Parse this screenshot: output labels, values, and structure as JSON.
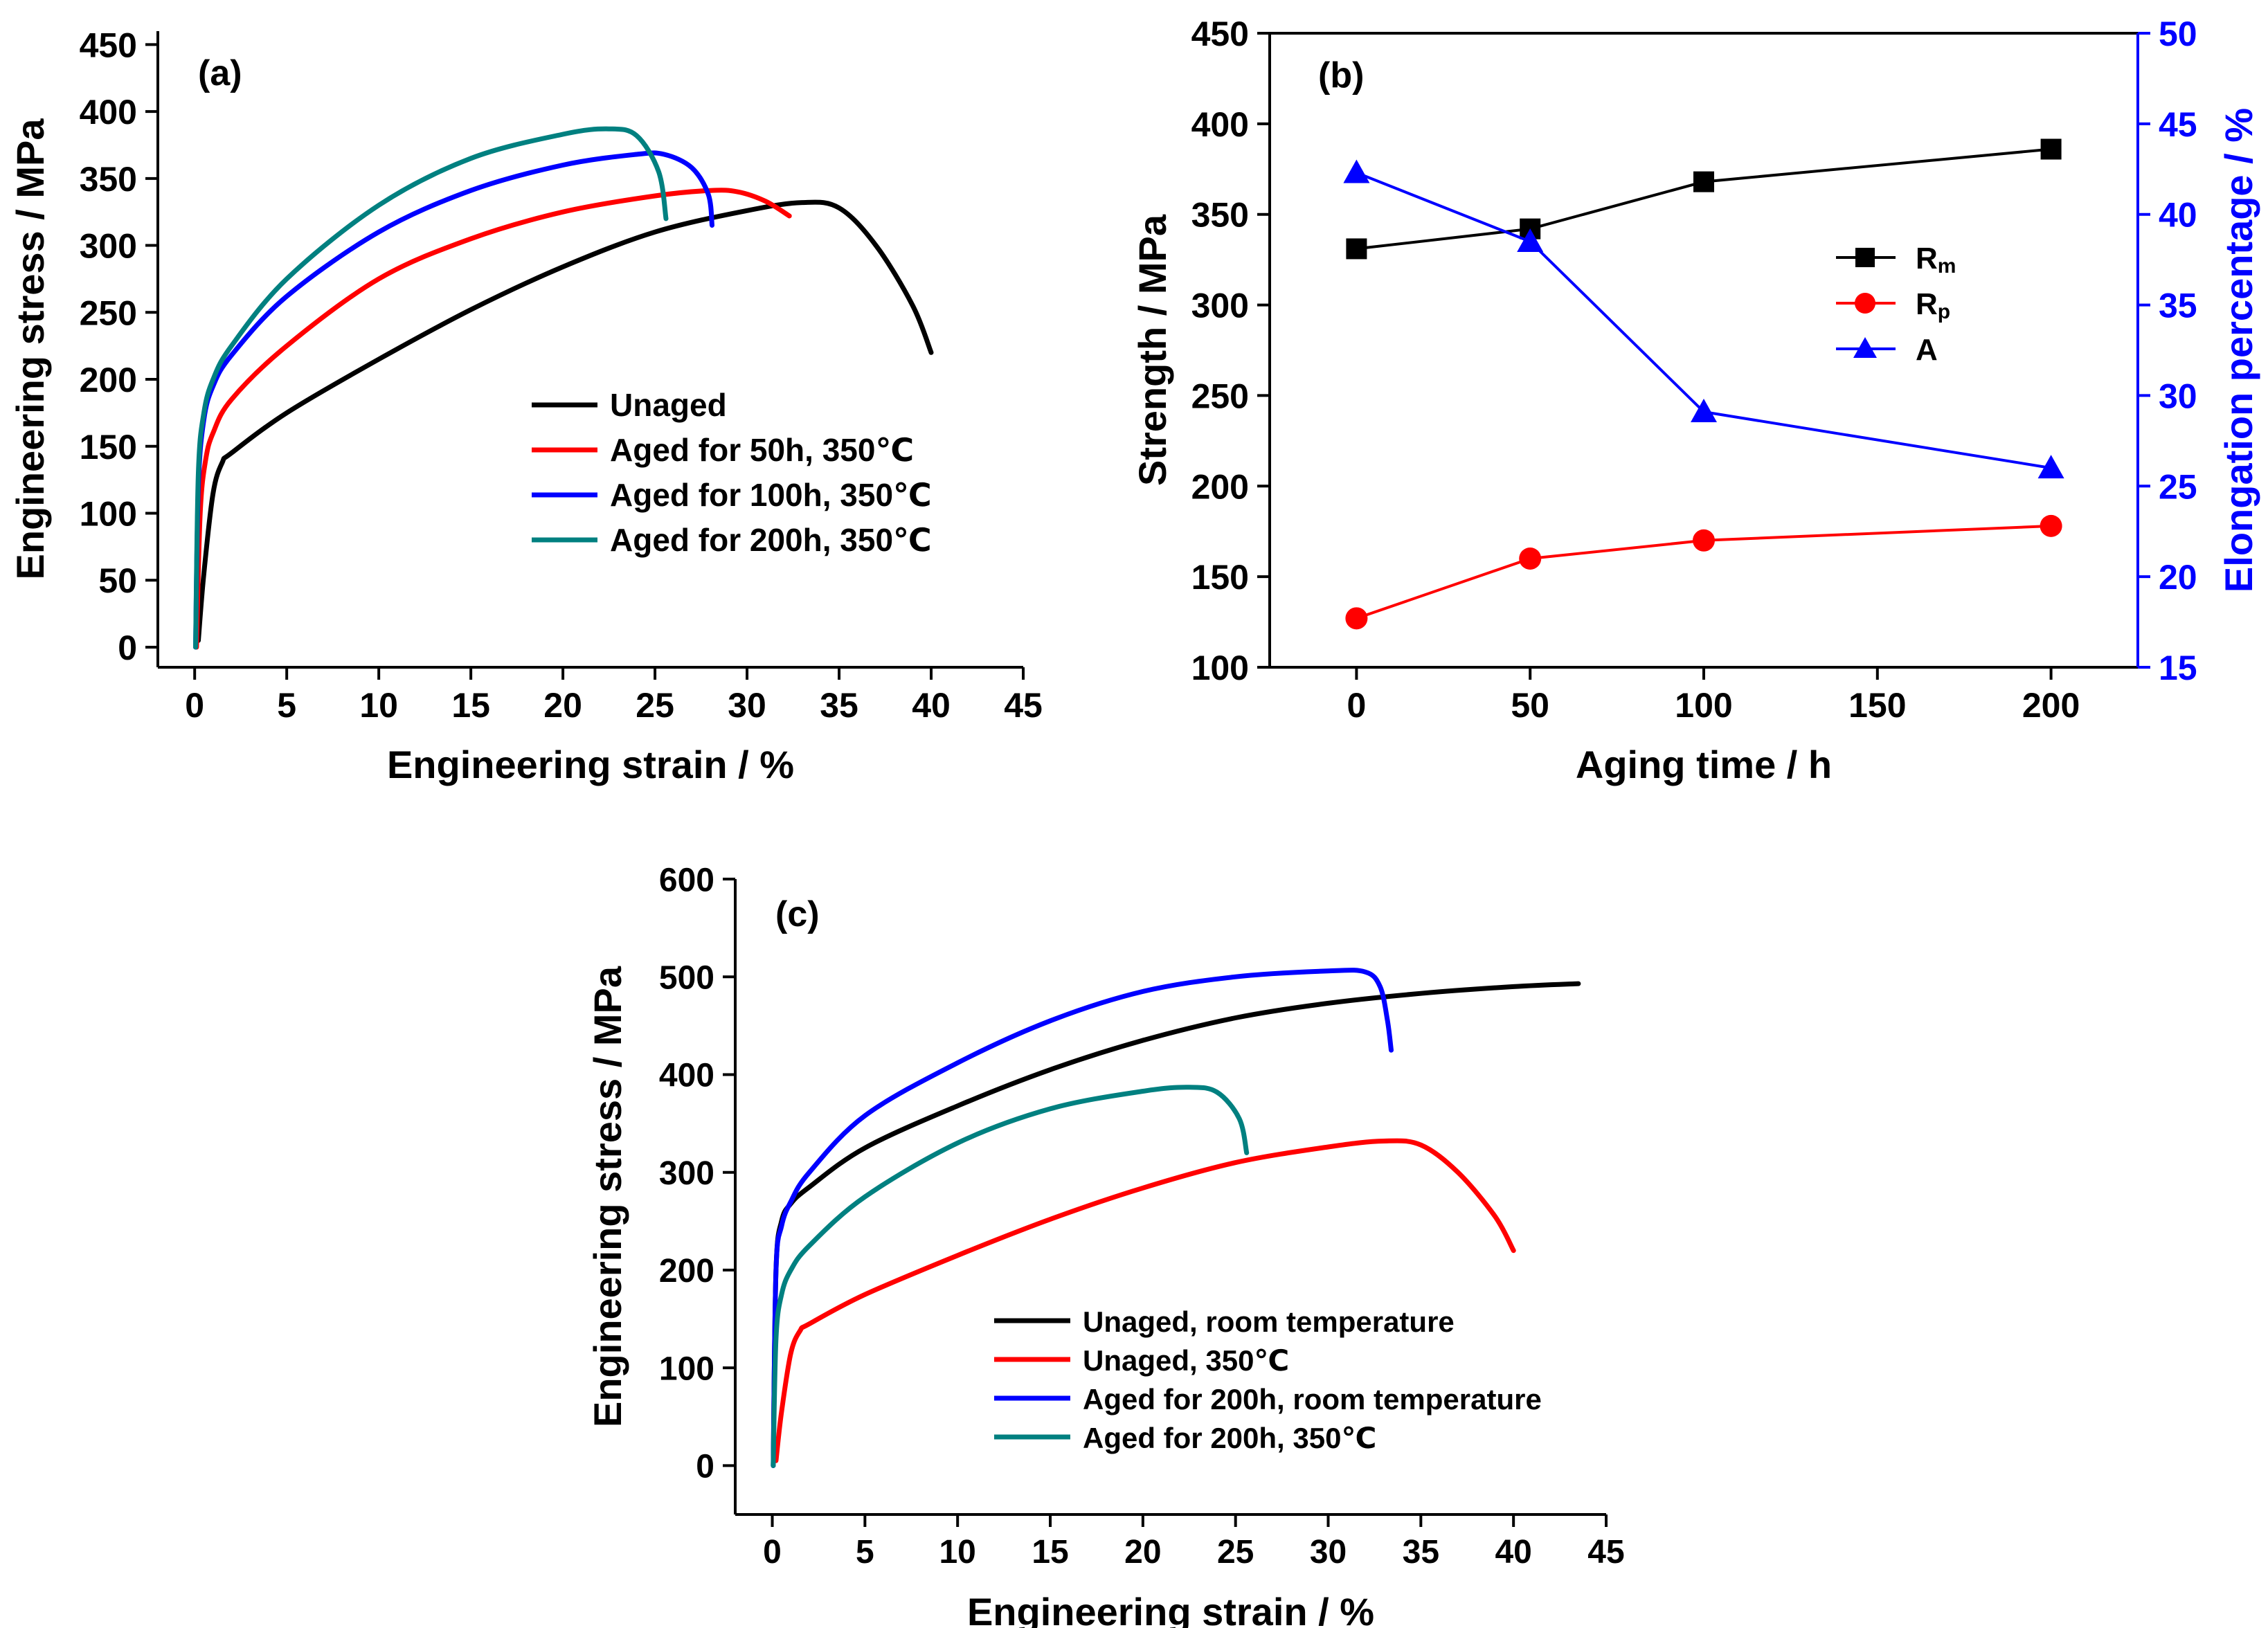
{
  "chart_data": [
    {
      "panel": "(a)",
      "type": "line",
      "xlabel": "Engineering strain / %",
      "ylabel": "Engineering stress / MPa",
      "xlim": [
        -2,
        45
      ],
      "ylim": [
        -15,
        460
      ],
      "xticks": [
        0,
        5,
        10,
        15,
        20,
        25,
        30,
        35,
        40,
        45
      ],
      "yticks": [
        0,
        50,
        100,
        150,
        200,
        250,
        300,
        350,
        400,
        450
      ],
      "legend_position": "center-right",
      "series": [
        {
          "name": "Unaged",
          "color": "#000000",
          "x": [
            0.2,
            0.5,
            1.0,
            1.5,
            2.0,
            5,
            10,
            15,
            20,
            25,
            30,
            33,
            35,
            37,
            39,
            40
          ],
          "y": [
            5,
            55,
            115,
            138,
            145,
            175,
            215,
            252,
            284,
            310,
            326,
            332,
            328,
            300,
            255,
            220
          ]
        },
        {
          "name": "Aged for 50h, 350℃",
          "color": "#ff0000",
          "x": [
            0.1,
            0.3,
            0.6,
            1.0,
            2.0,
            5,
            10,
            15,
            20,
            25,
            28,
            29.5,
            31,
            32.3
          ],
          "y": [
            0,
            100,
            140,
            160,
            185,
            225,
            275,
            305,
            325,
            337,
            341,
            340,
            333,
            322
          ]
        },
        {
          "name": "Aged for 100h, 350℃",
          "color": "#0000ff",
          "x": [
            0.05,
            0.2,
            0.5,
            1.0,
            2.0,
            5,
            10,
            15,
            20,
            24,
            25.5,
            27,
            27.9,
            28.1
          ],
          "y": [
            0,
            120,
            170,
            195,
            218,
            262,
            310,
            341,
            360,
            368,
            368,
            358,
            338,
            315
          ]
        },
        {
          "name": "Aged for 200h, 350℃",
          "color": "#008080",
          "x": [
            0.05,
            0.2,
            0.5,
            1.0,
            2.0,
            5,
            10,
            15,
            20,
            22.5,
            24,
            25.2,
            25.6
          ],
          "y": [
            0,
            130,
            175,
            200,
            225,
            275,
            330,
            365,
            383,
            387,
            382,
            355,
            320
          ]
        }
      ]
    },
    {
      "panel": "(b)",
      "type": "line",
      "xlabel": "Aging time / h",
      "ylabel": "Strength / MPa",
      "ylabel_right": "Elongation percentage / %",
      "categories_x": [
        0,
        50,
        100,
        200
      ],
      "xlim": [
        -25,
        225
      ],
      "ylim": [
        100,
        450
      ],
      "ylim_right": [
        15,
        50
      ],
      "xticks": [
        0,
        50,
        100,
        150,
        200
      ],
      "yticks": [
        100,
        150,
        200,
        250,
        300,
        350,
        400,
        450
      ],
      "yticks_right": [
        15,
        20,
        25,
        30,
        35,
        40,
        45,
        50
      ],
      "legend_position": "center-right",
      "series": [
        {
          "name": "Rm",
          "axis": "left",
          "color": "#000000",
          "marker": "square",
          "x": [
            0,
            50,
            100,
            200
          ],
          "y": [
            331,
            342,
            368,
            386
          ]
        },
        {
          "name": "Rp",
          "axis": "left",
          "color": "#ff0000",
          "marker": "circle",
          "x": [
            0,
            50,
            100,
            200
          ],
          "y": [
            127,
            160,
            170,
            178
          ]
        },
        {
          "name": "A",
          "axis": "right",
          "color": "#0000ff",
          "marker": "triangle",
          "x": [
            0,
            50,
            100,
            200
          ],
          "y": [
            42.3,
            38.5,
            29.1,
            26.0
          ]
        }
      ],
      "legend_labels": [
        {
          "main": "R",
          "sub": "m"
        },
        {
          "main": "R",
          "sub": "p"
        },
        {
          "main": "A",
          "sub": ""
        }
      ]
    },
    {
      "panel": "(c)",
      "type": "line",
      "xlabel": "Engineering strain / %",
      "ylabel": "Engineering stress / MPa",
      "xlim": [
        -2,
        45
      ],
      "ylim": [
        -50,
        600
      ],
      "xticks": [
        0,
        5,
        10,
        15,
        20,
        25,
        30,
        35,
        40,
        45
      ],
      "yticks": [
        0,
        100,
        200,
        300,
        400,
        500,
        600
      ],
      "legend_position": "bottom-right",
      "series": [
        {
          "name": "Unaged, room temperature",
          "color": "#000000",
          "x": [
            0.05,
            0.2,
            0.5,
            1.0,
            2.0,
            5,
            10,
            15,
            20,
            25,
            30,
            35,
            40,
            43.5
          ],
          "y": [
            0,
            200,
            250,
            268,
            285,
            325,
            368,
            405,
            435,
            458,
            473,
            483,
            490,
            493
          ]
        },
        {
          "name": "Unaged, 350℃",
          "color": "#ff0000",
          "x": [
            0.2,
            0.5,
            1.0,
            1.5,
            2.0,
            5,
            10,
            15,
            20,
            25,
            30,
            33,
            35,
            37,
            39,
            40
          ],
          "y": [
            5,
            55,
            115,
            138,
            145,
            175,
            215,
            252,
            284,
            310,
            326,
            332,
            328,
            300,
            255,
            220
          ]
        },
        {
          "name": "Aged for 200h, room temperature",
          "color": "#0000ff",
          "x": [
            0.05,
            0.2,
            0.5,
            1.0,
            2.0,
            5,
            10,
            15,
            20,
            25,
            30,
            32,
            32.8,
            33.2,
            33.4
          ],
          "y": [
            0,
            200,
            245,
            270,
            300,
            358,
            412,
            455,
            485,
            500,
            506,
            505,
            490,
            455,
            425
          ]
        },
        {
          "name": "Aged for 200h, 350℃",
          "color": "#008080",
          "x": [
            0.05,
            0.2,
            0.5,
            1.0,
            2.0,
            5,
            10,
            15,
            20,
            22.5,
            24,
            25.2,
            25.6
          ],
          "y": [
            0,
            130,
            175,
            200,
            225,
            275,
            330,
            365,
            383,
            387,
            382,
            355,
            320
          ]
        }
      ]
    }
  ]
}
